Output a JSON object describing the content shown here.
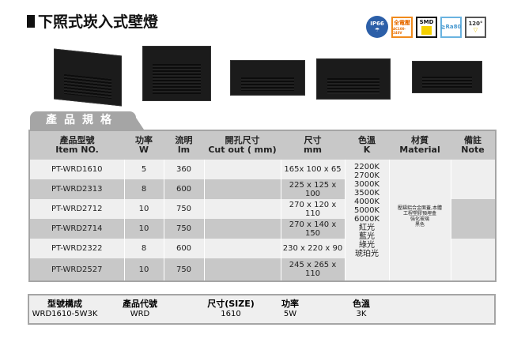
{
  "title": "下照式崁入式壁燈",
  "badges": {
    "ip": "IP66",
    "voltage": "全電壓",
    "voltage_sub": "AC100-240V",
    "smd": "SMD",
    "cri": "≧Ra80",
    "angle": "120°"
  },
  "section_tab": "產品規格",
  "table": {
    "headers": [
      [
        "產品型號",
        "Item NO."
      ],
      [
        "功率",
        "W"
      ],
      [
        "流明",
        "lm"
      ],
      [
        "開孔尺寸",
        "Cut out ( mm)"
      ],
      [
        "尺寸",
        "mm"
      ],
      [
        "色溫",
        "K"
      ],
      [
        "材質",
        "Material"
      ],
      [
        "備註",
        "Note"
      ]
    ],
    "rows": [
      {
        "item": "PT-WRD1610",
        "w": "5",
        "lm": "360",
        "cutout": "",
        "size": "165x 100 x 65"
      },
      {
        "item": "PT-WRD2313",
        "w": "8",
        "lm": "600",
        "cutout": "",
        "size": "225 x 125 x 100"
      },
      {
        "item": "PT-WRD2712",
        "w": "10",
        "lm": "750",
        "cutout": "",
        "size": "270 x 120 x 110"
      },
      {
        "item": "PT-WRD2714",
        "w": "10",
        "lm": "750",
        "cutout": "",
        "size": "270 x 140 x 150"
      },
      {
        "item": "PT-WRD2322",
        "w": "8",
        "lm": "600",
        "cutout": "",
        "size": "230 x 220 x 90"
      },
      {
        "item": "PT-WRD2527",
        "w": "10",
        "lm": "750",
        "cutout": "",
        "size": "245 x 265 x 110"
      }
    ],
    "color_temps": [
      "2200K",
      "2700K",
      "3000K",
      "3500K",
      "4000K",
      "5000K",
      "6000K",
      "紅光",
      "藍光",
      "綠光",
      "琥珀光"
    ],
    "material": [
      "壓鑄鋁合金面蓋,本體",
      "工程塑膠預埋盒",
      "強化玻璃",
      "黑色"
    ]
  },
  "model_code": {
    "headers": [
      "型號構成",
      "產品代號",
      "尺寸(SIZE)",
      "功率",
      "色溫"
    ],
    "values": [
      "WRD1610-5W3K",
      "WRD",
      "1610",
      "5W",
      "3K"
    ]
  }
}
